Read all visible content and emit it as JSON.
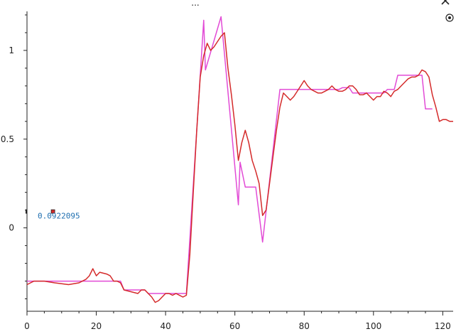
{
  "toolbar": {
    "ellipsis_label": "...",
    "close_icon": "close-icon",
    "target_icon": "target-icon"
  },
  "cursor_readout": {
    "value_label": "0.0922095",
    "value": 0.0922095,
    "x": 7.5
  },
  "chart_data": {
    "type": "line",
    "title": "",
    "xlabel": "",
    "ylabel": "",
    "xlim": [
      0,
      123
    ],
    "ylim": [
      -0.47,
      1.22
    ],
    "grid": false,
    "x_ticks": [
      0,
      20,
      40,
      60,
      80,
      100,
      120
    ],
    "x_tick_labels": [
      "0",
      "20",
      "40",
      "60",
      "80",
      "100",
      "120"
    ],
    "y_ticks": [
      0,
      0.5,
      1
    ],
    "y_tick_labels": [
      "0",
      "0.5",
      "1"
    ],
    "colors": {
      "series_a": "#d42a2a",
      "series_b": "#e24bd6"
    },
    "series": [
      {
        "color": "#e24bd6",
        "x": [
          0,
          5,
          27,
          28,
          34,
          35,
          46,
          51,
          51.5,
          56,
          61,
          61.5,
          63,
          66,
          68,
          73,
          90,
          91,
          93,
          94,
          103,
          104,
          106,
          107,
          114,
          115,
          117
        ],
        "y": [
          -0.3,
          -0.3,
          -0.3,
          -0.35,
          -0.35,
          -0.37,
          -0.37,
          1.17,
          0.89,
          1.19,
          0.13,
          0.37,
          0.23,
          0.23,
          -0.08,
          0.78,
          0.78,
          0.79,
          0.79,
          0.76,
          0.76,
          0.78,
          0.78,
          0.86,
          0.86,
          0.67,
          0.67
        ]
      },
      {
        "color": "#d42a2a",
        "x": [
          0,
          2,
          5,
          8,
          12,
          15,
          17,
          18,
          19,
          20,
          21,
          23,
          24,
          25,
          26,
          27,
          28,
          30,
          32,
          33,
          34,
          35,
          36,
          37,
          38,
          39,
          40,
          41,
          42,
          43,
          44,
          45,
          46,
          47,
          48,
          49,
          50,
          51,
          52,
          53,
          54,
          55,
          56,
          57,
          58,
          59,
          60,
          61,
          62,
          63,
          64,
          65,
          66,
          67,
          68,
          69,
          70,
          71,
          72,
          73,
          74,
          75,
          76,
          77,
          78,
          79,
          80,
          81,
          82,
          83,
          84,
          85,
          86,
          87,
          88,
          89,
          90,
          91,
          92,
          93,
          94,
          95,
          96,
          97,
          98,
          99,
          100,
          101,
          102,
          103,
          104,
          105,
          106,
          107,
          108,
          109,
          110,
          111,
          112,
          113,
          114,
          115,
          116,
          117,
          118,
          119,
          120,
          121,
          122,
          123
        ],
        "y": [
          -0.32,
          -0.3,
          -0.3,
          -0.31,
          -0.32,
          -0.31,
          -0.29,
          -0.27,
          -0.23,
          -0.27,
          -0.25,
          -0.26,
          -0.27,
          -0.3,
          -0.3,
          -0.31,
          -0.35,
          -0.36,
          -0.37,
          -0.35,
          -0.35,
          -0.37,
          -0.39,
          -0.42,
          -0.41,
          -0.39,
          -0.37,
          -0.37,
          -0.38,
          -0.37,
          -0.38,
          -0.39,
          -0.38,
          -0.15,
          0.2,
          0.55,
          0.85,
          0.97,
          1.04,
          1.0,
          1.02,
          1.05,
          1.08,
          1.1,
          0.9,
          0.75,
          0.58,
          0.38,
          0.48,
          0.55,
          0.48,
          0.38,
          0.32,
          0.25,
          0.07,
          0.1,
          0.25,
          0.4,
          0.55,
          0.68,
          0.76,
          0.74,
          0.72,
          0.74,
          0.77,
          0.8,
          0.83,
          0.8,
          0.78,
          0.77,
          0.76,
          0.76,
          0.77,
          0.78,
          0.8,
          0.78,
          0.77,
          0.77,
          0.78,
          0.8,
          0.8,
          0.78,
          0.75,
          0.75,
          0.76,
          0.74,
          0.72,
          0.74,
          0.74,
          0.77,
          0.76,
          0.74,
          0.77,
          0.78,
          0.8,
          0.82,
          0.84,
          0.85,
          0.85,
          0.86,
          0.89,
          0.88,
          0.85,
          0.75,
          0.68,
          0.6,
          0.61,
          0.61,
          0.6,
          0.6
        ]
      }
    ]
  }
}
